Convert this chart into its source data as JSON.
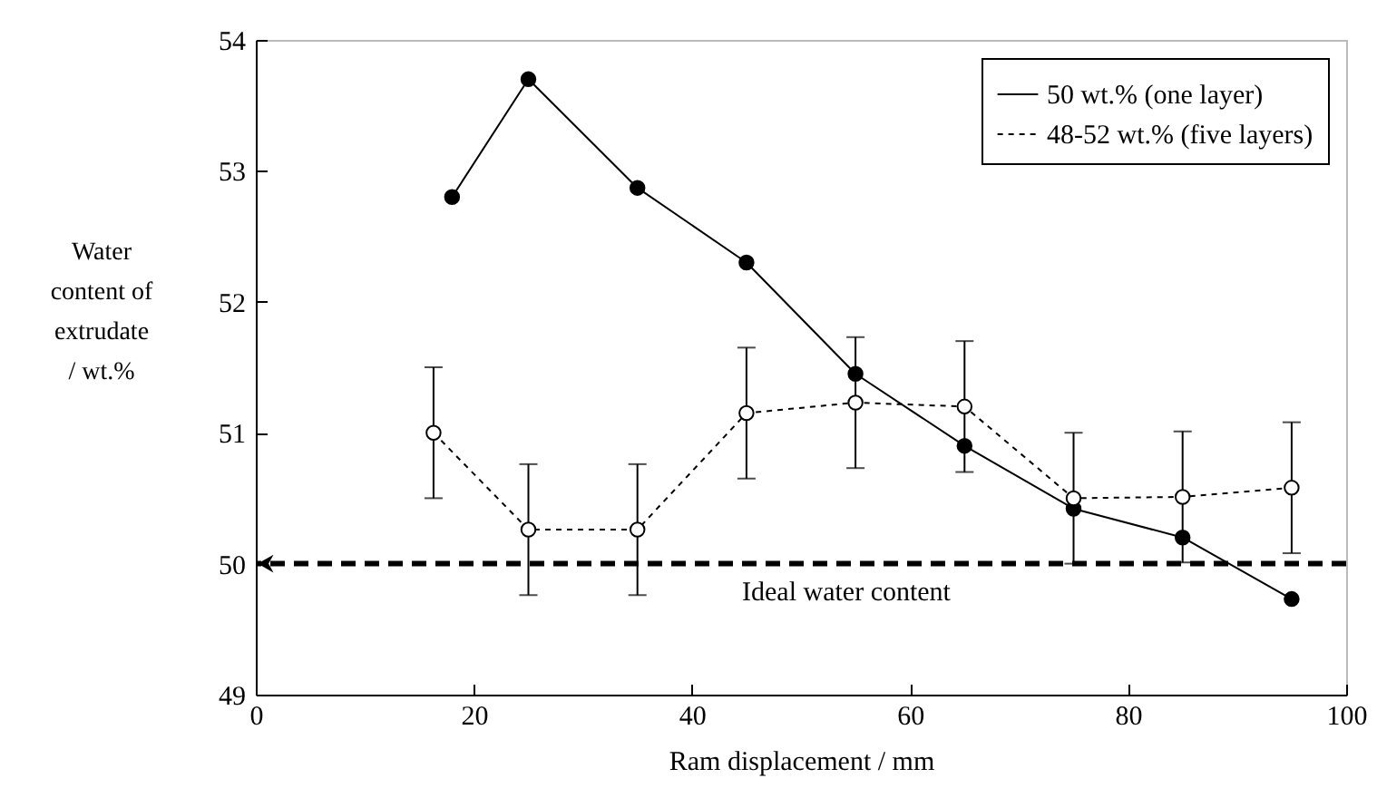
{
  "chart_data": {
    "type": "line",
    "xlabel": "Ram displacement / mm",
    "ylabel": "Water content of extrudate / wt.%",
    "xlim": [
      0,
      100
    ],
    "xticks": [
      0,
      20,
      40,
      60,
      80,
      100
    ],
    "ylim": [
      49,
      54
    ],
    "yticks": [
      49,
      50,
      51,
      52,
      53,
      54
    ],
    "grid": false,
    "legend": "top right",
    "marker": "circle",
    "series": [
      {
        "name": "50 wt.% (one layer)",
        "color": "#000000",
        "line_style": "solid",
        "x": [
          18,
          25,
          35,
          45,
          55,
          65,
          75,
          85,
          95
        ],
        "values": [
          52.8,
          53.7,
          52.87,
          52.3,
          51.45,
          50.9,
          50.42,
          50.2,
          49.73
        ]
      },
      {
        "name": "48-52 wt.% (five layers)",
        "color": "#000000",
        "line_style": "dotted",
        "x": [
          16.3,
          25,
          35,
          45,
          55,
          65,
          75,
          85,
          95
        ],
        "values": [
          51.0,
          50.26,
          50.26,
          51.15,
          51.23,
          51.2,
          50.5,
          50.51,
          50.58
        ],
        "errors": [
          0.5,
          0.5,
          0.5,
          0.5,
          0.5,
          0.5,
          0.5,
          0.5,
          0.5
        ]
      }
    ],
    "ref_lines": [
      {
        "axis": "y",
        "value": 50,
        "label": "Ideal water content",
        "line_style": "dashed",
        "color": "#000000"
      }
    ]
  }
}
